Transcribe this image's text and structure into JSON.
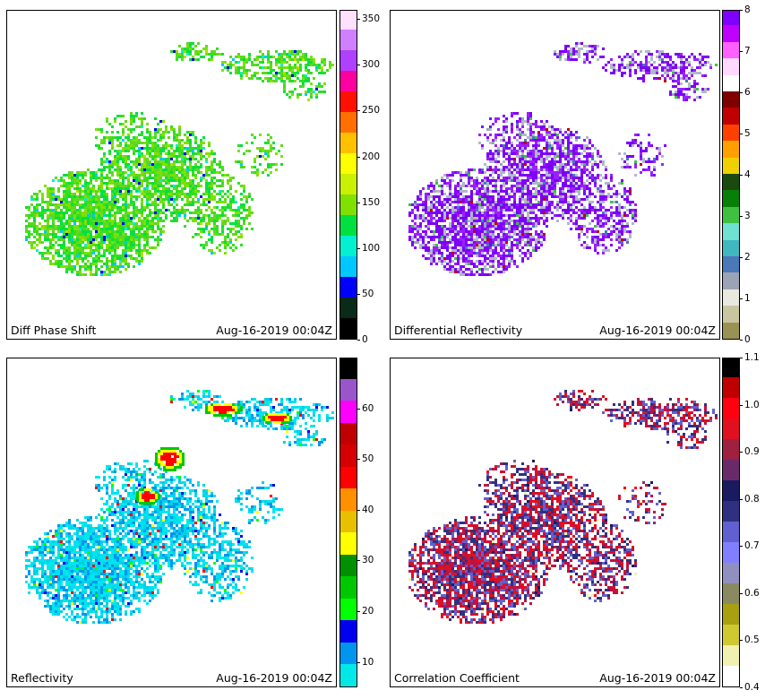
{
  "figure": {
    "timestamp": "Aug-16-2019 00:04Z"
  },
  "panels": [
    {
      "id": "diff-phase-shift",
      "label": "Diff Phase Shift",
      "timestamp": "Aug-16-2019 00:04Z",
      "colormap": "phidp",
      "colorbar": {
        "min": 0,
        "max": 360,
        "ticks": [
          "0",
          "50",
          "100",
          "150",
          "200",
          "250",
          "300",
          "350"
        ],
        "colors": [
          "#000000",
          "#0a2a1a",
          "#0000ff",
          "#00c8ff",
          "#00f0d0",
          "#00e040",
          "#80e000",
          "#c8f000",
          "#ffff00",
          "#ffc000",
          "#ff7000",
          "#ff1000",
          "#ff00a0",
          "#b040ff",
          "#d080ff",
          "#ffe0ff"
        ]
      }
    },
    {
      "id": "differential-reflectivity",
      "label": "Differential Reflectivity",
      "timestamp": "Aug-16-2019 00:04Z",
      "colormap": "zdr",
      "colorbar": {
        "min": 0,
        "max": 8,
        "ticks": [
          "0",
          "1",
          "2",
          "3",
          "4",
          "5",
          "6",
          "7",
          "8"
        ],
        "colors": [
          "#9a9254",
          "#c8c6a0",
          "#e8e8e0",
          "#9aa4b4",
          "#4a78b8",
          "#40b8c0",
          "#70e0d0",
          "#40c040",
          "#088008",
          "#1a4a10",
          "#f0d000",
          "#ffa000",
          "#ff4000",
          "#c00000",
          "#800000",
          "#ffffff",
          "#ffd8ff",
          "#ff60ff",
          "#c000ff",
          "#8000ff"
        ]
      }
    },
    {
      "id": "reflectivity",
      "label": "Reflectivity",
      "timestamp": "Aug-16-2019 00:04Z",
      "colormap": "dbz",
      "colorbar": {
        "min": 5,
        "max": 70,
        "ticks": [
          "10",
          "20",
          "30",
          "40",
          "50",
          "60"
        ],
        "colors": [
          "#00e8e8",
          "#0096f0",
          "#0000f0",
          "#00ff00",
          "#00c800",
          "#009000",
          "#ffff00",
          "#e8c000",
          "#ff9000",
          "#ff0000",
          "#d60000",
          "#c00000",
          "#ff00ff",
          "#9955c9",
          "#000000"
        ]
      }
    },
    {
      "id": "correlation-coefficient",
      "label": "Correlation Coefficient",
      "timestamp": "Aug-16-2019 00:04Z",
      "colormap": "rhohv",
      "colorbar": {
        "min": 0.4,
        "max": 1.1,
        "ticks": [
          "0.4",
          "0.5",
          "0.6",
          "0.7",
          "0.8",
          "0.9",
          "1.0",
          "1.1"
        ],
        "colors": [
          "#ffffff",
          "#f0f0b0",
          "#d0c830",
          "#a8a010",
          "#8a8a60",
          "#9090c0",
          "#8080ff",
          "#6060d0",
          "#303080",
          "#1a1a60",
          "#6a2a6a",
          "#a02040",
          "#e01020",
          "#ff0010",
          "#c00000",
          "#000000"
        ]
      }
    }
  ]
}
